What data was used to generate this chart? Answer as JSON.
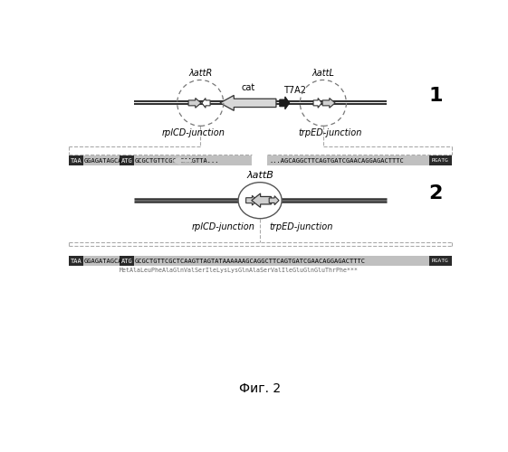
{
  "title": "Фиг. 2",
  "bg_color": "#ffffff",
  "label1": "1",
  "label2": "2",
  "rplCD_label": "rplCD-junction",
  "trpED_label": "trpED-junction",
  "attR_label": "λattR",
  "attL_label": "λattL",
  "attB_label": "λattB",
  "cat_label": "cat",
  "T7A2_label": "T7A2",
  "seq2_aa": "MetAlaLeuPheAlaGlnValSerIleLysLysGlnAlaSerValIleGluGlnGluThrPhe***",
  "dark_color": "#2a2a2a",
  "mid_color": "#888888",
  "light_color": "#cccccc",
  "line_color": "#555555",
  "connect_color": "#aaaaaa"
}
